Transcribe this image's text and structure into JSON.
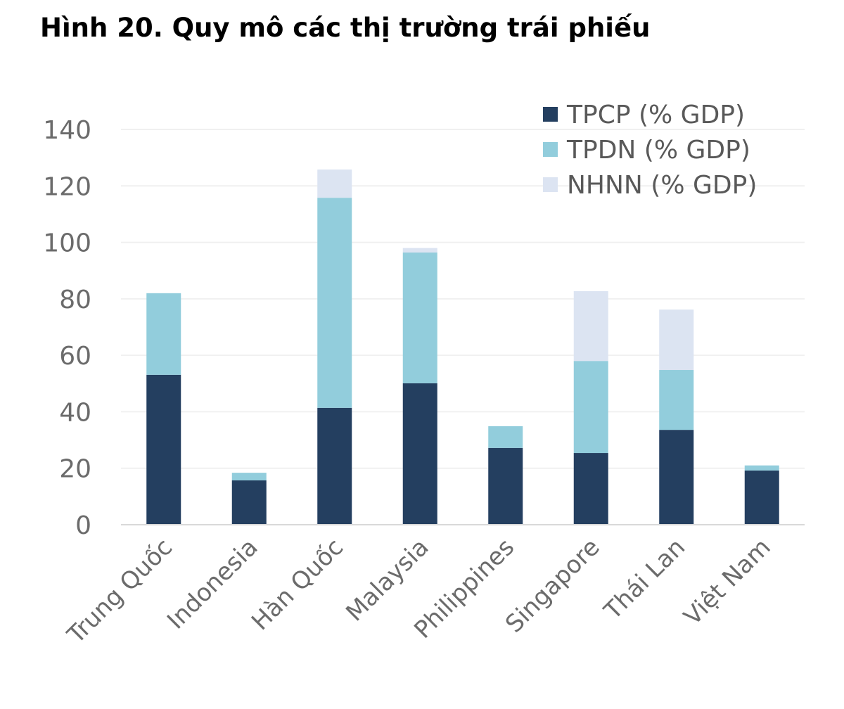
{
  "chart_data": {
    "type": "bar",
    "stacked": true,
    "title": "Hình 20. Quy mô các thị trường trái phiếu",
    "xlabel": "",
    "ylabel": "",
    "ylim": [
      0,
      140
    ],
    "yticks": [
      0,
      20,
      40,
      60,
      80,
      100,
      120,
      140
    ],
    "grid": true,
    "legend_position": "top-right",
    "categories": [
      "Trung Quốc",
      "Indonesia",
      "Hàn Quốc",
      "Malaysia",
      "Philippines",
      "Singapore",
      "Thái Lan",
      "Việt Nam"
    ],
    "series": [
      {
        "name": "TPCP (% GDP)",
        "color": "#243F60",
        "values": [
          53.1,
          15.7,
          41.4,
          50.1,
          27.2,
          25.4,
          33.6,
          19.2
        ]
      },
      {
        "name": "TPDN (% GDP)",
        "color": "#92CDDC",
        "values": [
          28.9,
          2.7,
          74.4,
          46.3,
          7.7,
          32.6,
          21.2,
          1.8
        ]
      },
      {
        "name": "NHNN (% GDP)",
        "color": "#DCE4F2",
        "values": [
          0,
          0,
          10.0,
          1.6,
          0,
          24.7,
          21.4,
          0
        ]
      }
    ]
  }
}
